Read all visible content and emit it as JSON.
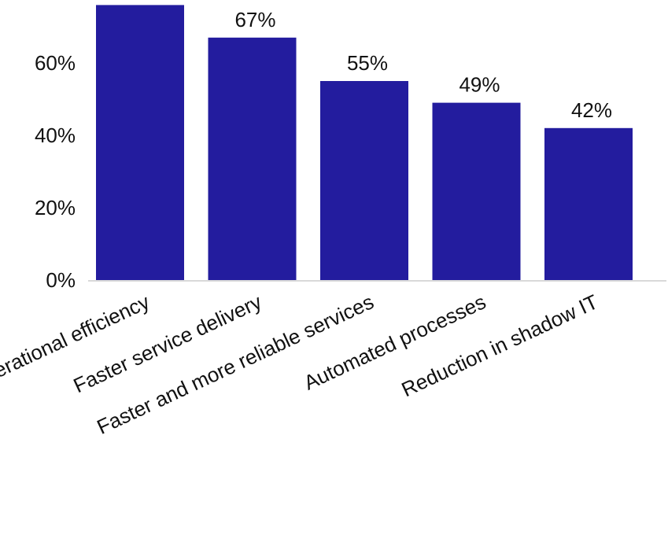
{
  "chart_data": {
    "type": "bar",
    "categories": [
      "Operational efficiency",
      "Faster service delivery",
      "Faster and more reliable services",
      "Automated processes",
      "Reduction in shadow IT"
    ],
    "values": [
      76,
      67,
      55,
      49,
      42
    ],
    "data_labels": [
      "",
      "67%",
      "55%",
      "49%",
      "42%"
    ],
    "yticks": [
      {
        "value": 0,
        "label": "0%"
      },
      {
        "value": 20,
        "label": "20%"
      },
      {
        "value": 40,
        "label": "40%"
      },
      {
        "value": 60,
        "label": "60%"
      }
    ],
    "ylim": [
      0,
      80
    ],
    "grid": false,
    "bar_color": "#231c9e",
    "axis_color": "#d9d9d9"
  }
}
